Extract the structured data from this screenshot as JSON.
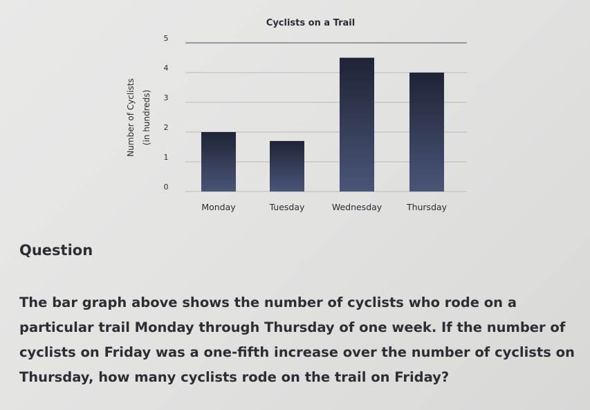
{
  "chart_data": {
    "type": "bar",
    "title": "Cyclists on a Trail",
    "ylabel": "Number of Cyclists",
    "ylabel_sub": "(in hundreds)",
    "categories": [
      "Monday",
      "Tuesday",
      "Wednesday",
      "Thursday"
    ],
    "values": [
      2,
      1.7,
      4.5,
      4
    ],
    "ylim": [
      0,
      5
    ],
    "yticks": [
      "0",
      "1",
      "2",
      "3",
      "4",
      "5"
    ],
    "grid": true,
    "bar_color": "#3b4566"
  },
  "question": {
    "heading": "Question",
    "text": "The bar graph above shows the number of cyclists who rode on a particular trail Monday through Thursday of one week. If the number of cyclists on Friday was a one-fifth increase over the number of cyclists on Thursday, how many cyclists rode on the trail on Friday?"
  }
}
